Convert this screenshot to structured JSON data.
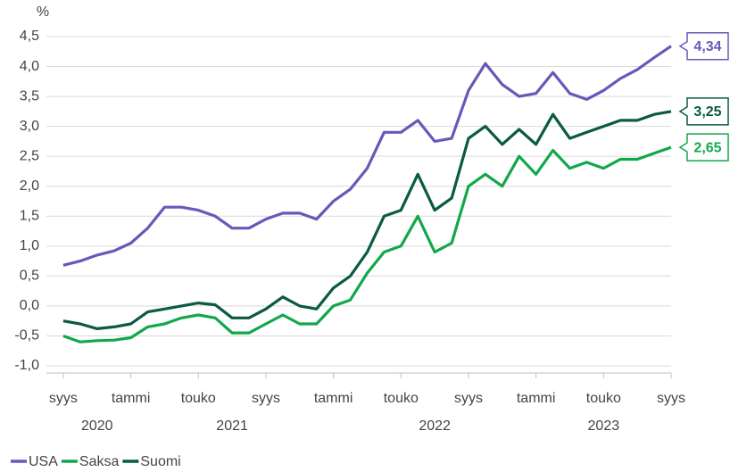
{
  "chart_data": {
    "type": "line",
    "y_label": "%",
    "x": [
      "2020-09",
      "2020-10",
      "2020-11",
      "2020-12",
      "2021-01",
      "2021-02",
      "2021-03",
      "2021-04",
      "2021-05",
      "2021-06",
      "2021-07",
      "2021-08",
      "2021-09",
      "2021-10",
      "2021-11",
      "2021-12",
      "2022-01",
      "2022-02",
      "2022-03",
      "2022-04",
      "2022-05",
      "2022-06",
      "2022-07",
      "2022-08",
      "2022-09",
      "2022-10",
      "2022-11",
      "2022-12",
      "2023-01",
      "2023-02",
      "2023-03",
      "2023-04",
      "2023-05",
      "2023-06",
      "2023-07",
      "2023-08",
      "2023-09"
    ],
    "xlim": [
      "2020-08",
      "2023-09"
    ],
    "xticks": [
      {
        "value": "2020-09",
        "label": "syys"
      },
      {
        "value": "2021-01",
        "label": "tammi"
      },
      {
        "value": "2021-05",
        "label": "touko"
      },
      {
        "value": "2021-09",
        "label": "syys"
      },
      {
        "value": "2022-01",
        "label": "tammi"
      },
      {
        "value": "2022-05",
        "label": "touko"
      },
      {
        "value": "2022-09",
        "label": "syys"
      },
      {
        "value": "2023-01",
        "label": "tammi"
      },
      {
        "value": "2023-05",
        "label": "touko"
      },
      {
        "value": "2023-09",
        "label": "syys"
      }
    ],
    "x_groups": [
      {
        "label": "2020",
        "from": "2020-09",
        "to": "2021-01"
      },
      {
        "label": "2021",
        "from": "2021-01",
        "to": "2022-01"
      },
      {
        "label": "2022",
        "from": "2022-01",
        "to": "2023-01"
      },
      {
        "label": "2023",
        "from": "2023-01",
        "to": "2023-09"
      }
    ],
    "ylim": [
      -1.0,
      4.5
    ],
    "yticks": [
      {
        "value": -1.0,
        "label": "-1,0"
      },
      {
        "value": -0.5,
        "label": "-0,5"
      },
      {
        "value": 0.0,
        "label": "0,0"
      },
      {
        "value": 0.5,
        "label": "0,5"
      },
      {
        "value": 1.0,
        "label": "1,0"
      },
      {
        "value": 1.5,
        "label": "1,5"
      },
      {
        "value": 2.0,
        "label": "2,0"
      },
      {
        "value": 2.5,
        "label": "2,5"
      },
      {
        "value": 3.0,
        "label": "3,0"
      },
      {
        "value": 3.5,
        "label": "3,5"
      },
      {
        "value": 4.0,
        "label": "4,0"
      },
      {
        "value": 4.5,
        "label": "4,5"
      }
    ],
    "grid": true,
    "legend": "bottom-left",
    "series": [
      {
        "name": "USA",
        "color": "#6b57b8",
        "values": [
          0.68,
          0.75,
          0.85,
          0.92,
          1.05,
          1.3,
          1.65,
          1.65,
          1.6,
          1.5,
          1.3,
          1.3,
          1.45,
          1.55,
          1.55,
          1.45,
          1.75,
          1.95,
          2.3,
          2.9,
          2.9,
          3.1,
          2.75,
          2.8,
          3.6,
          4.05,
          3.7,
          3.5,
          3.55,
          3.9,
          3.55,
          3.45,
          3.6,
          3.8,
          3.95,
          4.15,
          4.34
        ],
        "end_label": "4,34"
      },
      {
        "name": "Saksa",
        "color": "#12a84a",
        "values": [
          -0.5,
          -0.6,
          -0.58,
          -0.57,
          -0.53,
          -0.35,
          -0.3,
          -0.2,
          -0.15,
          -0.2,
          -0.45,
          -0.45,
          -0.3,
          -0.15,
          -0.3,
          -0.3,
          0.0,
          0.1,
          0.55,
          0.9,
          1.0,
          1.5,
          0.9,
          1.05,
          2.0,
          2.2,
          2.0,
          2.5,
          2.2,
          2.6,
          2.3,
          2.4,
          2.3,
          2.45,
          2.45,
          2.55,
          2.65
        ],
        "end_label": "2,65"
      },
      {
        "name": "Suomi",
        "color": "#0b5a43",
        "values": [
          -0.25,
          -0.3,
          -0.38,
          -0.35,
          -0.3,
          -0.1,
          -0.05,
          0.0,
          0.05,
          0.02,
          -0.2,
          -0.2,
          -0.05,
          0.15,
          0.0,
          -0.05,
          0.3,
          0.5,
          0.9,
          1.5,
          1.6,
          2.2,
          1.6,
          1.8,
          2.8,
          3.0,
          2.7,
          2.95,
          2.7,
          3.2,
          2.8,
          2.9,
          3.0,
          3.1,
          3.1,
          3.2,
          3.25
        ],
        "end_label": "3,25"
      }
    ]
  }
}
